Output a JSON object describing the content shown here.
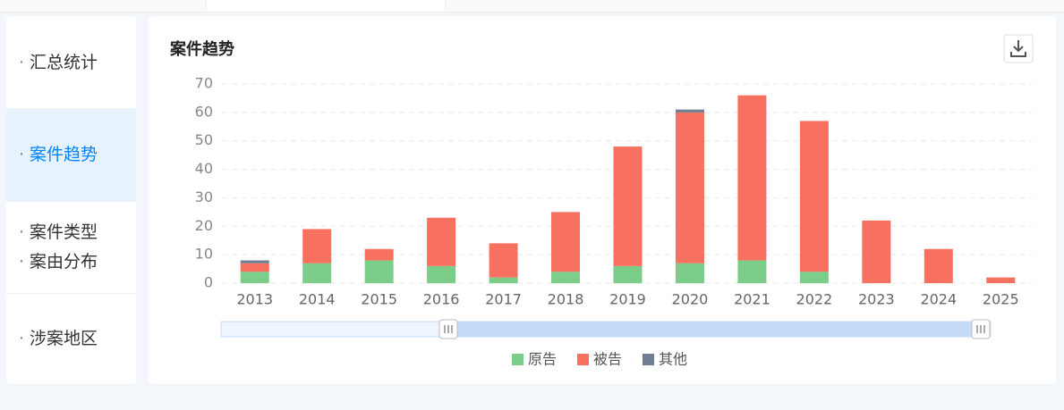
{
  "sidebar": {
    "items": [
      "汇总统计",
      "案件趋势",
      "案件类型",
      "案由分布",
      "涉案地区"
    ]
  },
  "chart_data": {
    "type": "stacked_bar",
    "title": "案件趋势",
    "categories": [
      "2013",
      "2014",
      "2015",
      "2016",
      "2017",
      "2018",
      "2019",
      "2020",
      "2021",
      "2022",
      "2023",
      "2024",
      "2025"
    ],
    "series": [
      {
        "name": "原告",
        "color": "#7ccd8a",
        "values": [
          4,
          7,
          8,
          6,
          2,
          4,
          6,
          7,
          8,
          4,
          0,
          0,
          0
        ]
      },
      {
        "name": "被告",
        "color": "#f87060",
        "values": [
          3,
          12,
          4,
          17,
          12,
          21,
          42,
          53,
          58,
          53,
          22,
          12,
          2
        ]
      },
      {
        "name": "其他",
        "color": "#6f7f8f",
        "values": [
          1,
          0,
          0,
          0,
          0,
          0,
          0,
          1,
          0,
          0,
          0,
          0,
          0
        ]
      }
    ],
    "ylim": [
      0,
      70
    ],
    "yticks": [
      0,
      10,
      20,
      30,
      40,
      50,
      60,
      70
    ],
    "grid": true
  }
}
